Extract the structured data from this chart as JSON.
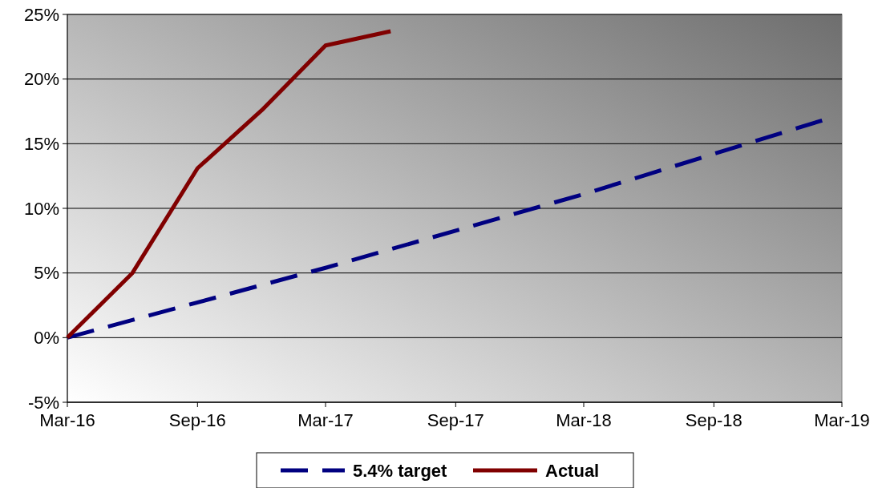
{
  "chart_data": {
    "type": "line",
    "x": [
      "2016-03",
      "2016-06",
      "2016-09",
      "2016-12",
      "2017-03",
      "2017-06"
    ],
    "series": [
      {
        "name": "5.4% target",
        "color": "#000080",
        "line_style": "dashed",
        "x": [
          "2016-03",
          "2017-03",
          "2018-03",
          "2019-02"
        ],
        "values": [
          0,
          5.4,
          11.1,
          16.8
        ]
      },
      {
        "name": "Actual",
        "color": "#800000",
        "line_style": "solid",
        "values": [
          0,
          5,
          13.1,
          17.6,
          22.6,
          23.7
        ]
      }
    ],
    "xlim": [
      "2016-03",
      "2019-03"
    ],
    "xticks": [
      {
        "value": "2016-03",
        "label": "Mar-16"
      },
      {
        "value": "2016-09",
        "label": "Sep-16"
      },
      {
        "value": "2017-03",
        "label": "Mar-17"
      },
      {
        "value": "2017-09",
        "label": "Sep-17"
      },
      {
        "value": "2018-03",
        "label": "Mar-18"
      },
      {
        "value": "2018-09",
        "label": "Sep-18"
      },
      {
        "value": "2019-03",
        "label": "Mar-19"
      }
    ],
    "ylim": [
      -5,
      25
    ],
    "yticks": [
      {
        "value": -5,
        "label": "-5%"
      },
      {
        "value": 0,
        "label": "0%"
      },
      {
        "value": 5,
        "label": "5%"
      },
      {
        "value": 10,
        "label": "10%"
      },
      {
        "value": 15,
        "label": "15%"
      },
      {
        "value": 20,
        "label": "20%"
      },
      {
        "value": 25,
        "label": "25%"
      }
    ],
    "grid": "y",
    "legend": "bottom"
  }
}
